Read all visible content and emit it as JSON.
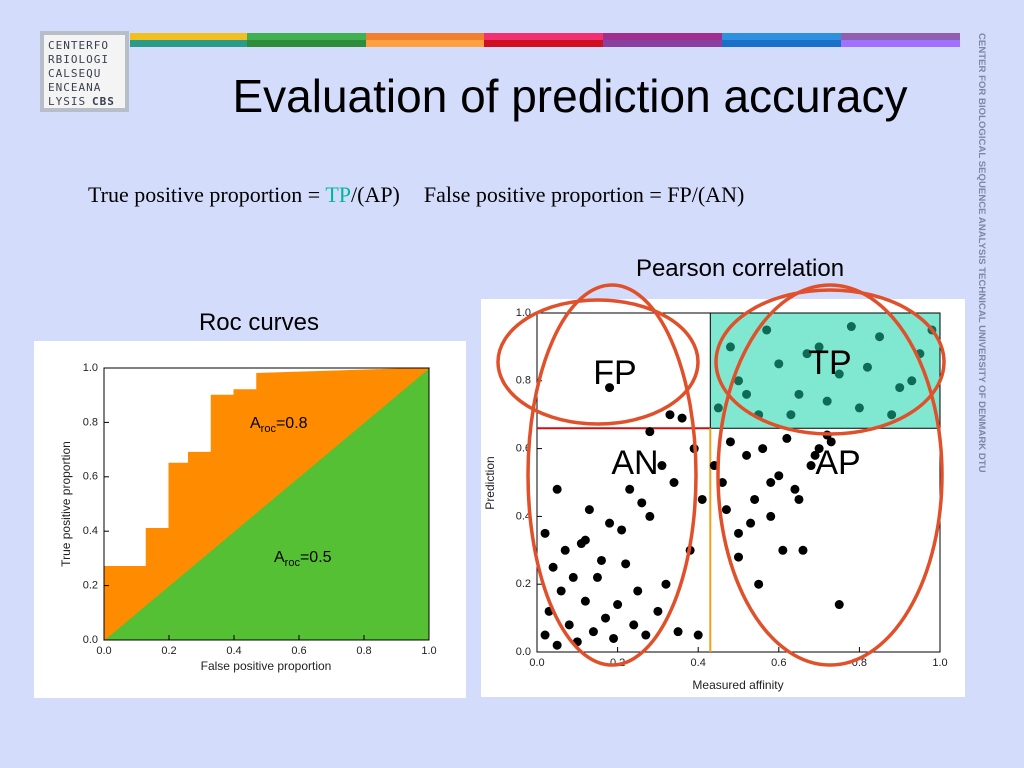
{
  "logo": {
    "rows": [
      "CENTERFO",
      "RBIOLOGI",
      "CALSEQU",
      "ENCEANA",
      "LYSIS"
    ],
    "badge": "CBS"
  },
  "title": "Evaluation of prediction accuracy",
  "formula": {
    "tpp_prefix": "True positive proportion = ",
    "tp": "TP",
    "tpp_suffix": "/(AP)",
    "fpp": "False positive proportion = FP/(AN)"
  },
  "side_text": "CENTER FOR BIOLOGICAL SEQUENCE ANALYSIS TECHNICAL UNIVERSITY OF DENMARK DTU",
  "chart_data": [
    {
      "type": "area",
      "title": "Roc curves",
      "x_label": "False positive proportion",
      "y_label": "True positive proportion",
      "x": [
        0,
        0,
        0.13,
        0.13,
        0.2,
        0.2,
        0.26,
        0.26,
        0.33,
        0.33,
        0.4,
        0.4,
        0.47,
        0.47,
        1
      ],
      "values": [
        0,
        0.27,
        0.27,
        0.41,
        0.41,
        0.65,
        0.65,
        0.69,
        0.69,
        0.9,
        0.9,
        0.92,
        0.92,
        0.98,
        1
      ],
      "color": "#ff8c00",
      "baseline_color": "#55c033",
      "xlim": [
        0,
        1
      ],
      "ylim": [
        0,
        1
      ],
      "xticks": [
        {
          "value": 0,
          "label": "0.0"
        },
        0.2,
        0.4,
        0.6,
        0.8,
        {
          "value": 1,
          "label": "1.0"
        }
      ],
      "yticks": [
        {
          "value": 0,
          "label": "0.0"
        },
        0.2,
        0.4,
        0.6,
        0.8,
        {
          "value": 1,
          "label": "1.0"
        }
      ],
      "annotations": [
        {
          "base": "A",
          "sub": "roc",
          "rest": "=0.8"
        },
        {
          "base": "A",
          "sub": "roc",
          "rest": "=0.5"
        }
      ]
    },
    {
      "type": "scatter",
      "title": "Pearson correlation",
      "x_label": "Measured affinity",
      "y_label": "Prediction",
      "x": [
        0.02,
        0.03,
        0.05,
        0.06,
        0.08,
        0.1,
        0.12,
        0.14,
        0.15,
        0.17,
        0.19,
        0.2,
        0.22,
        0.24,
        0.25,
        0.27,
        0.3,
        0.32,
        0.35,
        0.38,
        0.4,
        0.02,
        0.04,
        0.07,
        0.09,
        0.11,
        0.13,
        0.16,
        0.18,
        0.21,
        0.23,
        0.26,
        0.28,
        0.31,
        0.34,
        0.36,
        0.39,
        0.41,
        0.44,
        0.46,
        0.48,
        0.5,
        0.52,
        0.54,
        0.56,
        0.58,
        0.6,
        0.62,
        0.64,
        0.66,
        0.68,
        0.7,
        0.72,
        0.47,
        0.5,
        0.53,
        0.55,
        0.58,
        0.61,
        0.65,
        0.69,
        0.73,
        0.75,
        0.05,
        0.12,
        0.18,
        0.28,
        0.33,
        0.45,
        0.5,
        0.55,
        0.6,
        0.65,
        0.7,
        0.75,
        0.8,
        0.85,
        0.9,
        0.95,
        0.48,
        0.52,
        0.57,
        0.63,
        0.67,
        0.72,
        0.78,
        0.82,
        0.88,
        0.93,
        0.98
      ],
      "values": [
        0.05,
        0.12,
        0.02,
        0.18,
        0.08,
        0.03,
        0.15,
        0.06,
        0.22,
        0.1,
        0.04,
        0.14,
        0.26,
        0.08,
        0.18,
        0.05,
        0.12,
        0.2,
        0.06,
        0.3,
        0.05,
        0.35,
        0.25,
        0.3,
        0.22,
        0.32,
        0.42,
        0.27,
        0.38,
        0.36,
        0.48,
        0.44,
        0.4,
        0.55,
        0.5,
        0.69,
        0.6,
        0.45,
        0.55,
        0.5,
        0.62,
        0.35,
        0.58,
        0.45,
        0.6,
        0.4,
        0.52,
        0.63,
        0.48,
        0.3,
        0.55,
        0.6,
        0.64,
        0.42,
        0.28,
        0.38,
        0.2,
        0.5,
        0.3,
        0.45,
        0.58,
        0.62,
        0.14,
        0.48,
        0.33,
        0.78,
        0.65,
        0.7,
        0.72,
        0.8,
        0.7,
        0.85,
        0.76,
        0.9,
        0.82,
        0.72,
        0.93,
        0.78,
        0.88,
        0.9,
        0.76,
        0.95,
        0.7,
        0.88,
        0.74,
        0.96,
        0.84,
        0.7,
        0.8,
        0.95
      ],
      "color": "#000000",
      "highlight_color": "#0d6b56",
      "region_color": "#80e8d0",
      "threshold_x": 0.43,
      "threshold_y": 0.66,
      "threshold_x_color": "#f0a020",
      "threshold_y_color": "#d01010",
      "xlim": [
        0,
        1
      ],
      "ylim": [
        0,
        1
      ],
      "xticks": [
        {
          "value": 0,
          "label": "0.0"
        },
        0.2,
        0.4,
        0.6,
        0.8,
        {
          "value": 1,
          "label": "1.0"
        }
      ],
      "yticks": [
        {
          "value": 0,
          "label": "0.0"
        },
        0.2,
        0.4,
        0.6,
        0.8,
        {
          "value": 1,
          "label": "1.0"
        }
      ],
      "region_labels": [
        "FP",
        "TP",
        "AN",
        "AP"
      ]
    }
  ]
}
